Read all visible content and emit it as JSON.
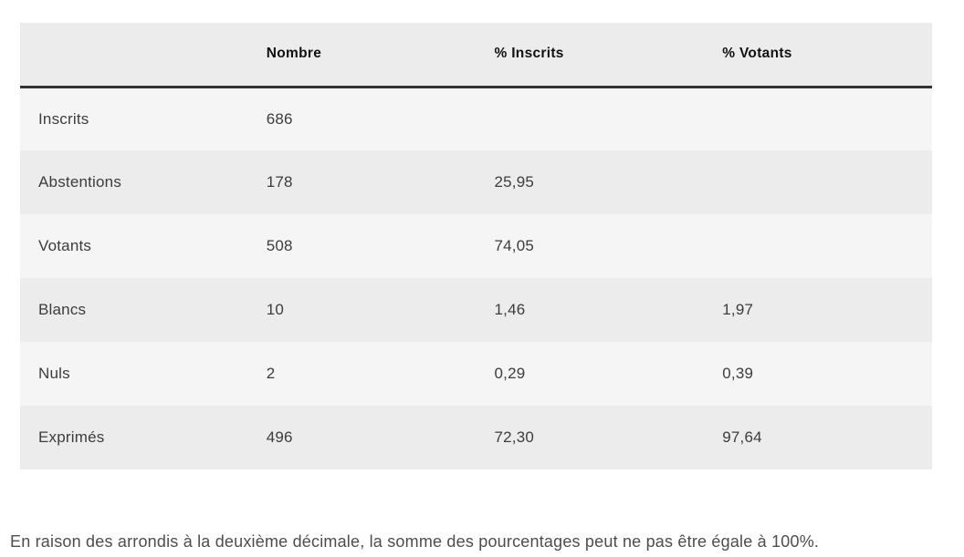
{
  "table": {
    "columns": [
      "",
      "Nombre",
      "% Inscrits",
      "% Votants"
    ],
    "rows": [
      {
        "label": "Inscrits",
        "nombre": "686",
        "pct_inscrits": "",
        "pct_votants": ""
      },
      {
        "label": "Abstentions",
        "nombre": "178",
        "pct_inscrits": "25,95",
        "pct_votants": ""
      },
      {
        "label": "Votants",
        "nombre": "508",
        "pct_inscrits": "74,05",
        "pct_votants": ""
      },
      {
        "label": "Blancs",
        "nombre": "10",
        "pct_inscrits": "1,46",
        "pct_votants": "1,97"
      },
      {
        "label": "Nuls",
        "nombre": "2",
        "pct_inscrits": "0,29",
        "pct_votants": "0,39"
      },
      {
        "label": "Exprimés",
        "nombre": "496",
        "pct_inscrits": "72,30",
        "pct_votants": "97,64"
      }
    ]
  },
  "footnote": "En raison des arrondis à la deuxième décimale, la somme des pourcentages peut ne pas être égale à 100%.",
  "colors": {
    "header_bg": "#ececec",
    "row_odd_bg": "#f5f5f6",
    "row_even_bg": "#ececec",
    "header_border": "#333333",
    "header_text": "#111111",
    "cell_text": "#3c3c3c",
    "footnote_text": "#4d4d4d",
    "page_bg": "#ffffff"
  }
}
